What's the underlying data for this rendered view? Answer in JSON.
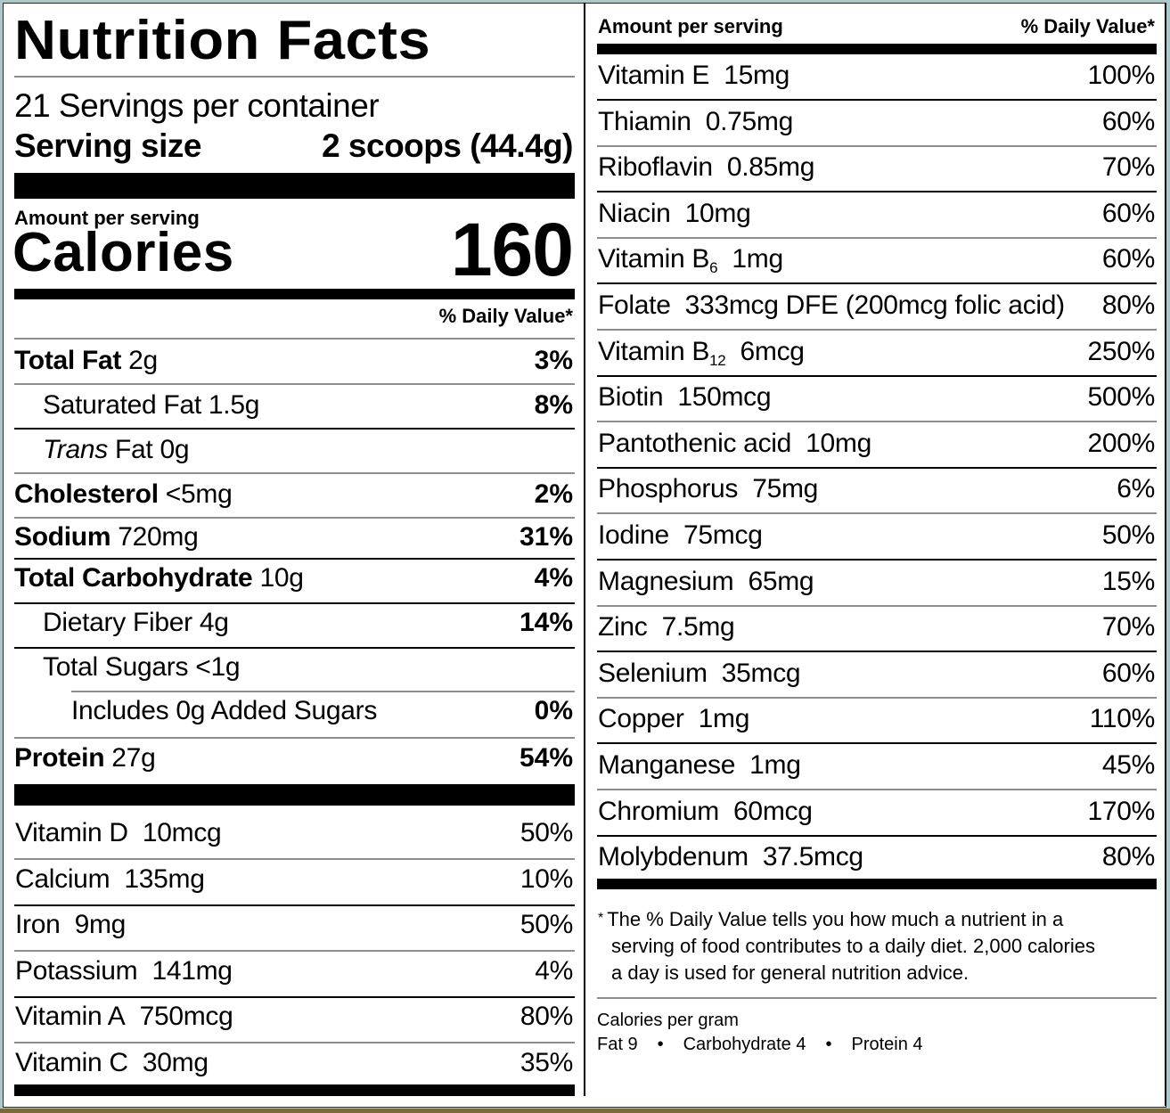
{
  "title": "Nutrition Facts",
  "servings_per_container": "21 Servings per container",
  "serving_size": {
    "label": "Serving size",
    "value": "2 scoops (44.4g)"
  },
  "amount_per_serving": "Amount per serving",
  "calories": {
    "label": "Calories",
    "value": "160"
  },
  "daily_value_header": "% Daily Value*",
  "macros": [
    {
      "name": "Total Fat",
      "amount": "2g",
      "dv": "3%",
      "bold": true,
      "indent": 0
    },
    {
      "name": "Saturated Fat",
      "amount": "1.5g",
      "dv": "8%",
      "bold": false,
      "indent": 1
    },
    {
      "name_italic": "Trans",
      "name": "Fat",
      "amount": "0g",
      "dv": "",
      "bold": false,
      "indent": 1
    },
    {
      "name": "Cholesterol",
      "amount": "<5mg",
      "dv": "2%",
      "bold": true,
      "indent": 0
    },
    {
      "name": "Sodium",
      "amount": "720mg",
      "dv": "31%",
      "bold": true,
      "indent": 0
    },
    {
      "name": "Total Carbohydrate",
      "amount": "10g",
      "dv": "4%",
      "bold": true,
      "indent": 0
    },
    {
      "name": "Dietary Fiber",
      "amount": "4g",
      "dv": "14%",
      "bold": false,
      "indent": 1
    },
    {
      "name": "Total Sugars",
      "amount": "<1g",
      "dv": "",
      "bold": false,
      "indent": 1
    },
    {
      "name": "Includes 0g Added Sugars",
      "amount": "",
      "dv": "0%",
      "bold": false,
      "indent": 2
    },
    {
      "name": "Protein",
      "amount": "27g",
      "dv": "54%",
      "bold": true,
      "indent": 0
    }
  ],
  "micros_left": [
    {
      "name": "Vitamin D",
      "amount": "10mcg",
      "dv": "50%"
    },
    {
      "name": "Calcium",
      "amount": "135mg",
      "dv": "10%"
    },
    {
      "name": "Iron",
      "amount": "9mg",
      "dv": "50%"
    },
    {
      "name": "Potassium",
      "amount": "141mg",
      "dv": "4%"
    },
    {
      "name": "Vitamin A",
      "amount": "750mcg",
      "dv": "80%"
    },
    {
      "name": "Vitamin C",
      "amount": "30mg",
      "dv": "35%"
    }
  ],
  "right_header": {
    "amount": "Amount per serving",
    "dv": "% Daily Value*"
  },
  "micros_right": [
    {
      "name": "Vitamin E",
      "sub": "",
      "amount": "15mg",
      "dv": "100%"
    },
    {
      "name": "Thiamin",
      "sub": "",
      "amount": "0.75mg",
      "dv": "60%"
    },
    {
      "name": "Riboflavin",
      "sub": "",
      "amount": "0.85mg",
      "dv": "70%"
    },
    {
      "name": "Niacin",
      "sub": "",
      "amount": "10mg",
      "dv": "60%"
    },
    {
      "name": "Vitamin B",
      "sub": "6",
      "amount": "1mg",
      "dv": "60%"
    },
    {
      "name": "Folate",
      "sub": "",
      "amount": "333mcg DFE (200mcg folic acid)",
      "dv": "80%"
    },
    {
      "name": "Vitamin B",
      "sub": "12",
      "amount": "6mcg",
      "dv": "250%"
    },
    {
      "name": "Biotin",
      "sub": "",
      "amount": "150mcg",
      "dv": "500%"
    },
    {
      "name": "Pantothenic acid",
      "sub": "",
      "amount": "10mg",
      "dv": "200%"
    },
    {
      "name": "Phosphorus",
      "sub": "",
      "amount": "75mg",
      "dv": "6%"
    },
    {
      "name": "Iodine",
      "sub": "",
      "amount": "75mcg",
      "dv": "50%"
    },
    {
      "name": "Magnesium",
      "sub": "",
      "amount": "65mg",
      "dv": "15%"
    },
    {
      "name": "Zinc",
      "sub": "",
      "amount": "7.5mg",
      "dv": "70%"
    },
    {
      "name": "Selenium",
      "sub": "",
      "amount": "35mcg",
      "dv": "60%"
    },
    {
      "name": "Copper",
      "sub": "",
      "amount": "1mg",
      "dv": "110%"
    },
    {
      "name": "Manganese",
      "sub": "",
      "amount": "1mg",
      "dv": "45%"
    },
    {
      "name": "Chromium",
      "sub": "",
      "amount": "60mcg",
      "dv": "170%"
    },
    {
      "name": "Molybdenum",
      "sub": "",
      "amount": "37.5mcg",
      "dv": "80%"
    }
  ],
  "footnote": {
    "star": "*",
    "line1": "The % Daily Value tells you how much a nutrient in a",
    "line2": "serving of food contributes to a daily diet. 2,000 calories",
    "line3": "a day is used for general nutrition advice."
  },
  "calories_per_gram": {
    "label": "Calories per gram",
    "fat": "Fat 9",
    "carbohydrate": "Carbohydrate 4",
    "protein": "Protein 4",
    "separator": "•"
  }
}
